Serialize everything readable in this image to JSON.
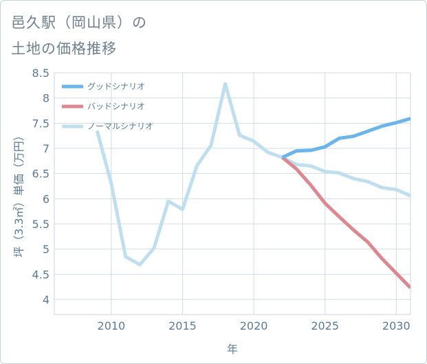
{
  "title_line1": "邑久駅（岡山県）の",
  "title_line2": "土地の価格推移",
  "chart_data": {
    "type": "line",
    "xlabel": "年",
    "ylabel": "坪（3.3㎡）単価（万円）",
    "xlim": [
      2006,
      2031
    ],
    "ylim": [
      3.7,
      8.5
    ],
    "x_ticks": [
      2010,
      2015,
      2020,
      2025,
      2030
    ],
    "y_ticks": [
      4,
      4.5,
      5,
      5.5,
      6,
      6.5,
      7,
      7.5,
      8,
      8.5
    ],
    "y_tick_labels": [
      "4",
      "4.5",
      "5",
      "5.5",
      "6",
      "6.5",
      "7",
      "7.5",
      "8",
      "8.5"
    ],
    "legend_position": "top-left",
    "series": [
      {
        "name": "グッドシナリオ",
        "color": "#6bb5ea",
        "x": [
          2022,
          2023,
          2024,
          2025,
          2026,
          2027,
          2028,
          2029,
          2030,
          2031
        ],
        "values": [
          6.82,
          6.95,
          6.96,
          7.03,
          7.2,
          7.24,
          7.34,
          7.44,
          7.51,
          7.59
        ]
      },
      {
        "name": "バッドシナリオ",
        "color": "#db8890",
        "x": [
          2022,
          2023,
          2024,
          2025,
          2026,
          2027,
          2028,
          2029,
          2030,
          2031
        ],
        "values": [
          6.82,
          6.59,
          6.27,
          5.91,
          5.64,
          5.38,
          5.14,
          4.81,
          4.52,
          4.23
        ]
      },
      {
        "name": "ノーマルシナリオ",
        "color": "#bfdfee",
        "x": [
          2009,
          2010,
          2011,
          2012,
          2013,
          2014,
          2015,
          2016,
          2017,
          2018,
          2019,
          2020,
          2021,
          2022,
          2023,
          2024,
          2025,
          2026,
          2027,
          2028,
          2029,
          2030,
          2031
        ],
        "values": [
          7.35,
          6.3,
          4.85,
          4.69,
          5.02,
          5.95,
          5.79,
          6.65,
          7.06,
          8.28,
          7.26,
          7.14,
          6.92,
          6.82,
          6.68,
          6.65,
          6.54,
          6.51,
          6.4,
          6.34,
          6.22,
          6.18,
          6.06
        ]
      }
    ]
  }
}
